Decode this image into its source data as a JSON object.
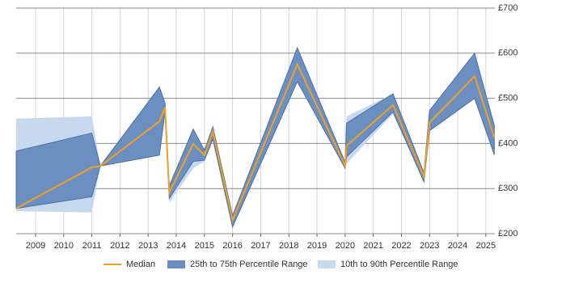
{
  "chart_data": {
    "type": "range-line",
    "x": [
      2008.31,
      2011,
      2011.3,
      2013.4,
      2013.6,
      2013.75,
      2014.6,
      2015,
      2015.3,
      2016,
      2018.3,
      2020,
      2020.05,
      2021.7,
      2022.8,
      2023,
      2024.6,
      2025.3
    ],
    "series": [
      {
        "name": "10th to 90th Percentile Range",
        "color": "#c6d9ee",
        "low": [
          250,
          247,
          350,
          374,
          470,
          268,
          345,
          360,
          405,
          215,
          537,
          345,
          355,
          465,
          315,
          428,
          500,
          375
        ],
        "high": [
          455,
          460,
          350,
          525,
          490,
          310,
          432,
          385,
          437,
          240,
          612,
          358,
          460,
          510,
          335,
          473,
          600,
          440
        ]
      },
      {
        "name": "25th to 75th Percentile Range",
        "color": "#6b8fc0",
        "low": [
          256,
          282,
          350,
          374,
          470,
          278,
          360,
          363,
          410,
          215,
          537,
          345,
          370,
          470,
          315,
          428,
          500,
          375
        ],
        "high": [
          383,
          423,
          350,
          525,
          490,
          305,
          432,
          385,
          437,
          240,
          612,
          358,
          445,
          510,
          335,
          473,
          600,
          440
        ]
      },
      {
        "name": "Median",
        "color": "#f0a024",
        "values": [
          256,
          347,
          350,
          449,
          480,
          291,
          399,
          374,
          426,
          230,
          575,
          351,
          395,
          485,
          327,
          446,
          549,
          413
        ]
      }
    ],
    "xlim": [
      2008.31,
      2025.32
    ],
    "xticks": [
      2009,
      2010,
      2011,
      2012,
      2013,
      2014,
      2015,
      2016,
      2017,
      2018,
      2019,
      2020,
      2021,
      2022,
      2023,
      2024,
      2025
    ],
    "ylim": [
      200,
      700
    ],
    "yticks": [
      {
        "value": 200,
        "label": "£200"
      },
      {
        "value": 300,
        "label": "£300"
      },
      {
        "value": 400,
        "label": "£400"
      },
      {
        "value": 500,
        "label": "£500"
      },
      {
        "value": 600,
        "label": "£600"
      },
      {
        "value": 700,
        "label": "£700"
      }
    ],
    "grid": true,
    "legend": "bottom"
  }
}
